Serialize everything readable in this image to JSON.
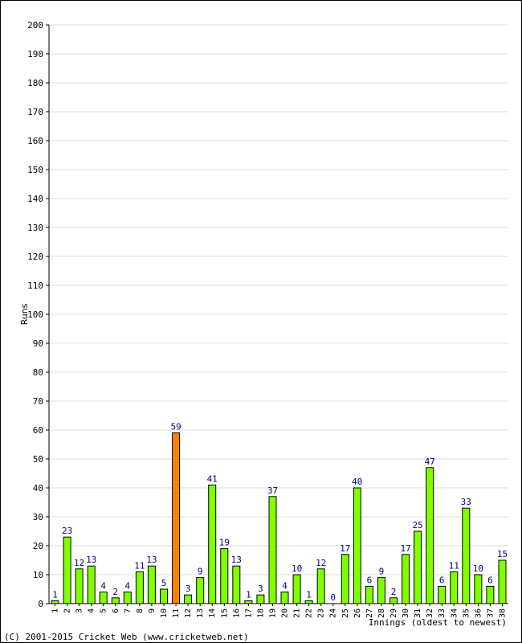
{
  "chart_data": {
    "type": "bar",
    "title": "",
    "ylabel": "Runs",
    "xlabel": "Innings (oldest to newest)",
    "ylim": [
      0,
      200
    ],
    "ytick_step": 10,
    "grid": true,
    "categories": [
      "1",
      "2",
      "3",
      "4",
      "5",
      "6",
      "7",
      "8",
      "9",
      "10",
      "11",
      "12",
      "13",
      "14",
      "15",
      "16",
      "17",
      "18",
      "19",
      "20",
      "21",
      "22",
      "23",
      "24",
      "25",
      "26",
      "27",
      "28",
      "29",
      "30",
      "31",
      "32",
      "33",
      "34",
      "35",
      "36",
      "37",
      "38"
    ],
    "values": [
      1,
      23,
      12,
      13,
      4,
      2,
      4,
      11,
      13,
      5,
      59,
      3,
      9,
      41,
      19,
      13,
      1,
      3,
      37,
      4,
      10,
      1,
      12,
      0,
      17,
      40,
      6,
      9,
      2,
      17,
      25,
      47,
      6,
      11,
      33,
      10,
      6,
      15
    ],
    "highlight_index": 10,
    "colors": {
      "bar": "#80ff00",
      "highlight": "#ff8000",
      "outline": "#000000",
      "label": "#000080",
      "grid": "#dddddd"
    }
  },
  "footer": {
    "copyright": "(C) 2001-2015 Cricket Web (www.cricketweb.net)"
  }
}
